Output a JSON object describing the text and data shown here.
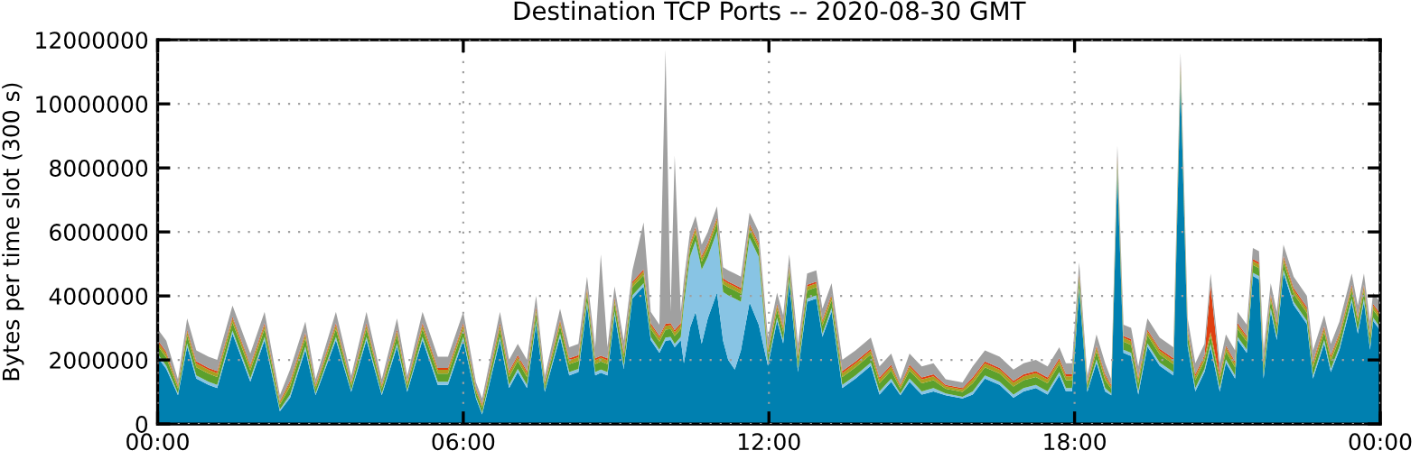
{
  "chart_data": {
    "type": "area",
    "title": "Destination TCP Ports -- 2020-08-30 GMT",
    "ylabel": "Bytes per time slot (300 s)",
    "stacked": true,
    "grid": true,
    "legend": false,
    "x": [
      0,
      0.17,
      0.4,
      0.58,
      0.76,
      1.0,
      1.17,
      1.47,
      1.82,
      2.1,
      2.4,
      2.6,
      2.9,
      3.1,
      3.5,
      3.8,
      4.1,
      4.4,
      4.7,
      4.9,
      5.2,
      5.5,
      5.7,
      6.0,
      6.25,
      6.37,
      6.72,
      6.9,
      7.07,
      7.25,
      7.43,
      7.6,
      7.9,
      8.08,
      8.26,
      8.43,
      8.59,
      8.7,
      8.83,
      8.97,
      9.15,
      9.32,
      9.54,
      9.68,
      9.85,
      9.97,
      10.07,
      10.15,
      10.27,
      10.33,
      10.45,
      10.56,
      10.68,
      10.8,
      10.98,
      11.1,
      11.2,
      11.33,
      11.45,
      11.62,
      11.8,
      11.98,
      12.16,
      12.28,
      12.4,
      12.57,
      12.75,
      12.93,
      13.05,
      13.23,
      13.44,
      13.7,
      14.0,
      14.17,
      14.4,
      14.58,
      14.76,
      15.0,
      15.23,
      15.47,
      15.8,
      16.0,
      16.24,
      16.53,
      16.8,
      17.0,
      17.24,
      17.47,
      17.7,
      17.83,
      17.95,
      18.09,
      18.25,
      18.43,
      18.6,
      18.72,
      18.84,
      18.96,
      19.11,
      19.25,
      19.43,
      19.67,
      19.94,
      20.08,
      20.22,
      20.37,
      20.55,
      20.67,
      20.85,
      20.97,
      21.15,
      21.2,
      21.38,
      21.5,
      21.62,
      21.71,
      21.85,
      21.97,
      22.1,
      22.3,
      22.56,
      22.68,
      22.9,
      23.03,
      23.2,
      23.44,
      23.56,
      23.68,
      23.8,
      23.86,
      24
    ],
    "xlim": [
      0,
      24
    ],
    "xticks": [
      {
        "value": 0,
        "label": "00:00"
      },
      {
        "value": 6,
        "label": "06:00"
      },
      {
        "value": 12,
        "label": "12:00"
      },
      {
        "value": 18,
        "label": "18:00"
      },
      {
        "value": 24,
        "label": "00:00"
      }
    ],
    "ylim": [
      0,
      12000000
    ],
    "yticks": [
      0,
      2000000,
      4000000,
      6000000,
      8000000,
      10000000,
      12000000
    ],
    "series": [
      {
        "color": "#0080b0",
        "values": [
          2090000,
          1720000,
          900000,
          2420000,
          1420000,
          1220000,
          1120000,
          2820000,
          1320000,
          2620000,
          400000,
          820000,
          2320000,
          900000,
          2620000,
          1000000,
          2620000,
          900000,
          2420000,
          1000000,
          2620000,
          1220000,
          1220000,
          2620000,
          800000,
          300000,
          2620000,
          1120000,
          1620000,
          1120000,
          3120000,
          1000000,
          2720000,
          1520000,
          1620000,
          3720000,
          1520000,
          1600000,
          1520000,
          3420000,
          1720000,
          3920000,
          4300000,
          2620000,
          2220000,
          2600000,
          2620000,
          2400000,
          2620000,
          1900000,
          3000000,
          3500000,
          2500000,
          3300000,
          4100000,
          2600000,
          2000000,
          1700000,
          2300000,
          3800000,
          3100000,
          1820000,
          3220000,
          2520000,
          4420000,
          1620000,
          3820000,
          3920000,
          2720000,
          3520000,
          1120000,
          1420000,
          1820000,
          920000,
          1320000,
          900000,
          1320000,
          920000,
          1020000,
          900000,
          800000,
          920000,
          1420000,
          1220000,
          820000,
          1020000,
          1120000,
          920000,
          1520000,
          1020000,
          1020000,
          4170000,
          1000000,
          1920000,
          1020000,
          900000,
          7820000,
          2220000,
          2120000,
          920000,
          2420000,
          1820000,
          1520000,
          10720000,
          2420000,
          1020000,
          1620000,
          2400000,
          1020000,
          1920000,
          1420000,
          2620000,
          2220000,
          4620000,
          4520000,
          1420000,
          3520000,
          2620000,
          4720000,
          3720000,
          3120000,
          1420000,
          2520000,
          1620000,
          2320000,
          3820000,
          2820000,
          3820000,
          2320000,
          3220000,
          2920000
        ]
      },
      {
        "color": "#88c4e4",
        "values": [
          100000,
          100000,
          50000,
          100000,
          100000,
          100000,
          100000,
          100000,
          100000,
          100000,
          50000,
          100000,
          100000,
          50000,
          100000,
          50000,
          100000,
          50000,
          100000,
          50000,
          100000,
          100000,
          100000,
          100000,
          50000,
          50000,
          100000,
          100000,
          100000,
          100000,
          100000,
          50000,
          100000,
          100000,
          100000,
          100000,
          100000,
          100000,
          100000,
          100000,
          100000,
          100000,
          100000,
          100000,
          100000,
          100000,
          100000,
          100000,
          100000,
          1820000,
          2220000,
          2220000,
          2320000,
          1920000,
          1920000,
          1520000,
          2020000,
          2220000,
          1520000,
          2020000,
          2120000,
          100000,
          100000,
          100000,
          100000,
          100000,
          100000,
          100000,
          100000,
          100000,
          100000,
          100000,
          100000,
          100000,
          100000,
          50000,
          100000,
          100000,
          100000,
          50000,
          50000,
          100000,
          100000,
          100000,
          100000,
          100000,
          100000,
          100000,
          100000,
          100000,
          100000,
          100000,
          50000,
          100000,
          100000,
          50000,
          100000,
          100000,
          100000,
          100000,
          100000,
          100000,
          100000,
          100000,
          100000,
          100000,
          100000,
          100000,
          100000,
          100000,
          100000,
          100000,
          100000,
          100000,
          100000,
          100000,
          100000,
          100000,
          100000,
          100000,
          100000,
          100000,
          100000,
          100000,
          100000,
          100000,
          100000,
          100000,
          100000,
          100000,
          100000
        ]
      },
      {
        "color": "#5ca02c",
        "values": [
          250000,
          250000,
          150000,
          250000,
          250000,
          250000,
          250000,
          250000,
          250000,
          250000,
          150000,
          250000,
          250000,
          150000,
          250000,
          150000,
          250000,
          150000,
          250000,
          150000,
          250000,
          250000,
          250000,
          250000,
          150000,
          150000,
          250000,
          250000,
          250000,
          250000,
          250000,
          150000,
          250000,
          250000,
          250000,
          250000,
          250000,
          250000,
          250000,
          250000,
          250000,
          250000,
          250000,
          250000,
          250000,
          250000,
          250000,
          250000,
          250000,
          250000,
          250000,
          250000,
          250000,
          250000,
          250000,
          250000,
          250000,
          250000,
          250000,
          250000,
          250000,
          250000,
          250000,
          250000,
          250000,
          250000,
          250000,
          250000,
          250000,
          250000,
          250000,
          250000,
          250000,
          250000,
          250000,
          150000,
          250000,
          250000,
          250000,
          150000,
          150000,
          250000,
          250000,
          250000,
          250000,
          250000,
          250000,
          250000,
          250000,
          250000,
          250000,
          250000,
          150000,
          250000,
          250000,
          150000,
          250000,
          250000,
          250000,
          250000,
          250000,
          250000,
          250000,
          250000,
          250000,
          250000,
          250000,
          250000,
          250000,
          250000,
          250000,
          250000,
          250000,
          250000,
          250000,
          250000,
          250000,
          250000,
          250000,
          250000,
          250000,
          250000,
          250000,
          250000,
          250000,
          250000,
          250000,
          250000,
          250000,
          250000,
          250000
        ]
      },
      {
        "color": "#a8a020",
        "values": [
          120000,
          120000,
          80000,
          120000,
          120000,
          120000,
          120000,
          120000,
          120000,
          120000,
          80000,
          120000,
          120000,
          80000,
          120000,
          80000,
          120000,
          80000,
          120000,
          80000,
          120000,
          120000,
          120000,
          120000,
          80000,
          80000,
          120000,
          120000,
          120000,
          120000,
          120000,
          80000,
          120000,
          120000,
          120000,
          120000,
          120000,
          120000,
          120000,
          120000,
          120000,
          120000,
          120000,
          120000,
          120000,
          120000,
          120000,
          120000,
          120000,
          120000,
          120000,
          120000,
          120000,
          120000,
          120000,
          120000,
          120000,
          120000,
          120000,
          120000,
          120000,
          120000,
          120000,
          120000,
          120000,
          120000,
          120000,
          120000,
          120000,
          120000,
          120000,
          120000,
          120000,
          120000,
          120000,
          80000,
          120000,
          120000,
          120000,
          80000,
          80000,
          120000,
          120000,
          120000,
          120000,
          120000,
          120000,
          120000,
          120000,
          120000,
          120000,
          120000,
          80000,
          120000,
          120000,
          80000,
          120000,
          120000,
          120000,
          120000,
          120000,
          120000,
          120000,
          120000,
          120000,
          120000,
          120000,
          120000,
          120000,
          120000,
          120000,
          120000,
          120000,
          120000,
          120000,
          120000,
          120000,
          120000,
          120000,
          120000,
          120000,
          120000,
          120000,
          120000,
          120000,
          120000,
          120000,
          120000,
          120000,
          120000,
          120000
        ]
      },
      {
        "color": "#e04010",
        "values": [
          60000,
          60000,
          40000,
          60000,
          60000,
          60000,
          60000,
          60000,
          60000,
          60000,
          40000,
          60000,
          60000,
          40000,
          60000,
          40000,
          60000,
          40000,
          60000,
          40000,
          60000,
          60000,
          60000,
          60000,
          40000,
          40000,
          60000,
          60000,
          60000,
          60000,
          60000,
          40000,
          60000,
          60000,
          60000,
          60000,
          60000,
          60000,
          60000,
          60000,
          60000,
          60000,
          60000,
          60000,
          60000,
          60000,
          60000,
          60000,
          60000,
          60000,
          60000,
          60000,
          60000,
          60000,
          60000,
          60000,
          60000,
          60000,
          60000,
          60000,
          60000,
          60000,
          60000,
          60000,
          60000,
          60000,
          60000,
          60000,
          60000,
          60000,
          60000,
          60000,
          60000,
          60000,
          60000,
          40000,
          60000,
          60000,
          60000,
          40000,
          40000,
          60000,
          60000,
          60000,
          60000,
          60000,
          60000,
          60000,
          60000,
          60000,
          60000,
          60000,
          40000,
          60000,
          60000,
          40000,
          60000,
          60000,
          60000,
          60000,
          60000,
          60000,
          60000,
          60000,
          60000,
          60000,
          60000,
          1480000,
          60000,
          60000,
          60000,
          60000,
          60000,
          60000,
          60000,
          60000,
          60000,
          60000,
          60000,
          60000,
          60000,
          60000,
          60000,
          60000,
          60000,
          60000,
          60000,
          60000,
          60000,
          60000,
          60000
        ]
      },
      {
        "color": "#a0a0a0",
        "values": [
          350000,
          350000,
          180000,
          350000,
          350000,
          350000,
          350000,
          350000,
          350000,
          350000,
          180000,
          350000,
          350000,
          180000,
          350000,
          180000,
          350000,
          180000,
          350000,
          180000,
          350000,
          350000,
          350000,
          350000,
          180000,
          180000,
          350000,
          350000,
          350000,
          350000,
          350000,
          180000,
          350000,
          350000,
          350000,
          350000,
          350000,
          3170000,
          350000,
          350000,
          350000,
          350000,
          1470000,
          350000,
          350000,
          8570000,
          350000,
          5470000,
          350000,
          350000,
          350000,
          350000,
          350000,
          350000,
          350000,
          350000,
          350000,
          350000,
          350000,
          350000,
          350000,
          350000,
          350000,
          350000,
          350000,
          350000,
          350000,
          350000,
          350000,
          350000,
          350000,
          350000,
          350000,
          350000,
          350000,
          180000,
          350000,
          350000,
          350000,
          180000,
          180000,
          350000,
          350000,
          350000,
          350000,
          350000,
          350000,
          350000,
          350000,
          350000,
          350000,
          350000,
          180000,
          350000,
          350000,
          180000,
          350000,
          350000,
          350000,
          350000,
          350000,
          350000,
          350000,
          350000,
          350000,
          350000,
          350000,
          350000,
          350000,
          350000,
          350000,
          350000,
          350000,
          350000,
          350000,
          350000,
          350000,
          350000,
          350000,
          350000,
          350000,
          350000,
          350000,
          350000,
          350000,
          350000,
          350000,
          350000,
          350000,
          350000,
          350000
        ]
      }
    ]
  }
}
